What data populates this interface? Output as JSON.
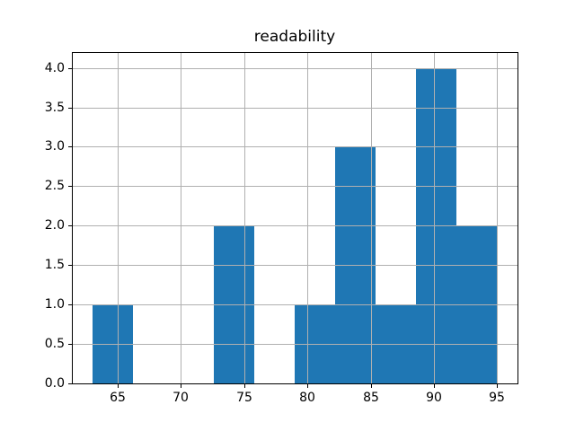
{
  "chart_data": {
    "type": "bar",
    "subtype": "histogram",
    "title": "readability",
    "xlabel": "",
    "ylabel": "",
    "bin_edges": [
      63.0,
      66.2,
      69.4,
      72.6,
      75.8,
      79.0,
      82.2,
      85.4,
      88.6,
      91.8,
      95.0
    ],
    "counts": [
      1,
      0,
      0,
      2,
      0,
      1,
      3,
      1,
      4,
      2
    ],
    "x_tick_labels": [
      "65",
      "70",
      "75",
      "80",
      "85",
      "90",
      "95"
    ],
    "y_tick_labels": [
      "0.0",
      "0.5",
      "1.0",
      "1.5",
      "2.0",
      "2.5",
      "3.0",
      "3.5",
      "4.0"
    ],
    "xlim": [
      61.4,
      96.6
    ],
    "ylim": [
      0,
      4.2
    ],
    "grid": true,
    "grid_over_bars": true,
    "legend": false,
    "bar_color": "#1f77b4",
    "grid_color": "#b0b0b0",
    "spine_color": "#000000",
    "text_color": "#000000",
    "background_color": "#ffffff"
  }
}
